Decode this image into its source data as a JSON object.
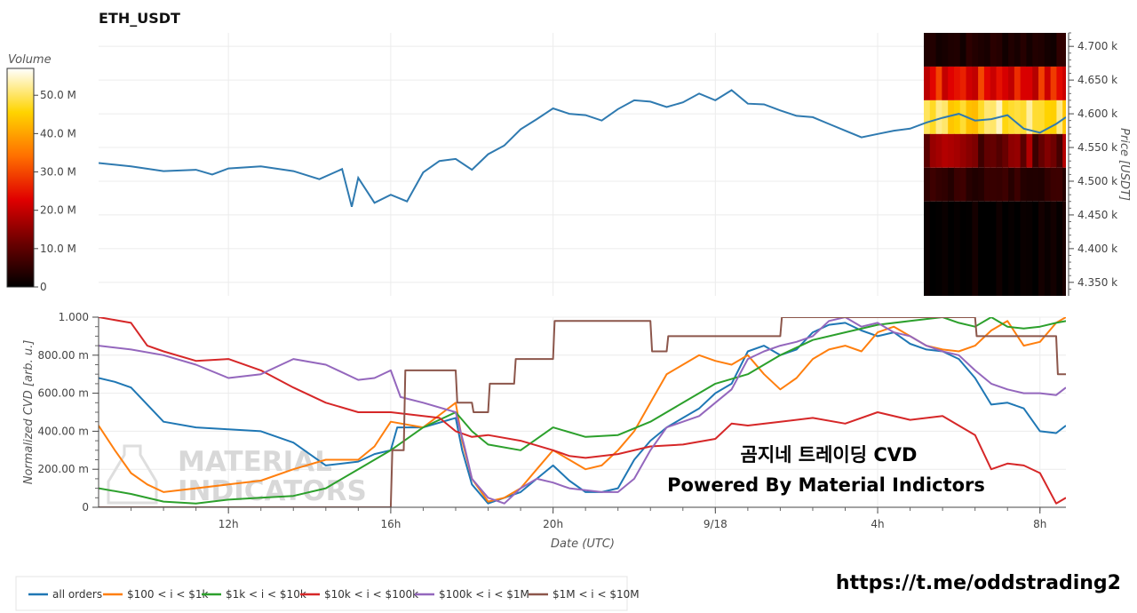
{
  "title": "ETH_USDT",
  "colorbar": {
    "title": "Volume",
    "ticks": [
      "50.0 M",
      "40.0 M",
      "30.0 M",
      "20.0 M",
      "10.0 M",
      "0"
    ]
  },
  "watermark": [
    "MATERIAL",
    "INDICATORS"
  ],
  "annotation": [
    "곰지네 트레이딩 CVD",
    "Powered By Material Indictors"
  ],
  "footer_url": "https://t.me/oddstrading2",
  "chart_data": [
    {
      "type": "line",
      "name": "price",
      "ylabel": "Price [USDT]",
      "ylim": [
        4330,
        4720
      ],
      "y_ticks": [
        "4.700 k",
        "4.650 k",
        "4.600 k",
        "4.550 k",
        "4.500 k",
        "4.450 k",
        "4.400 k",
        "4.350 k"
      ],
      "y_tick_values": [
        4700,
        4650,
        4600,
        4550,
        4500,
        4450,
        4400,
        4350
      ],
      "x_hours": [
        0,
        1,
        2,
        3,
        3.5,
        4,
        5,
        6,
        6.8,
        7.5,
        7.8,
        8,
        8.5,
        9,
        9.5,
        10,
        10.5,
        11,
        11.5,
        12,
        12.5,
        13,
        13.5,
        14,
        14.5,
        15,
        15.5,
        16,
        16.5,
        17,
        17.5,
        18,
        18.5,
        19,
        19.5,
        20,
        20.5,
        21,
        21.5,
        22,
        22.5,
        23,
        23.5,
        24,
        24.5,
        25,
        25.5,
        26,
        26.5,
        27,
        27.5,
        28,
        28.5,
        29,
        29.5,
        29.8
      ],
      "values": [
        4527,
        4522,
        4515,
        4517,
        4510,
        4519,
        4522,
        4515,
        4503,
        4518,
        4462,
        4505,
        4468,
        4480,
        4470,
        4513,
        4530,
        4533,
        4517,
        4540,
        4553,
        4577,
        4592,
        4608,
        4600,
        4598,
        4590,
        4607,
        4620,
        4618,
        4610,
        4617,
        4630,
        4620,
        4635,
        4615,
        4614,
        4605,
        4597,
        4595,
        4585,
        4575,
        4565,
        4570,
        4575,
        4578,
        4587,
        4594,
        4600,
        4590,
        4592,
        4598,
        4578,
        4572,
        4585,
        4595
      ]
    },
    {
      "type": "heatmap",
      "name": "volume profile",
      "rows": [
        {
          "price_range": [
            4670,
            4720
          ],
          "intensity": 0.06
        },
        {
          "price_range": [
            4620,
            4670
          ],
          "intensity": 0.42
        },
        {
          "price_range": [
            4570,
            4620
          ],
          "intensity": 0.85
        },
        {
          "price_range": [
            4520,
            4570
          ],
          "intensity": 0.22
        },
        {
          "price_range": [
            4470,
            4520
          ],
          "intensity": 0.09
        },
        {
          "price_range": [
            4330,
            4470
          ],
          "intensity": 0.02
        }
      ]
    },
    {
      "type": "line",
      "name": "cvd",
      "xlabel": "Date (UTC)",
      "ylabel": "Normalized CVD [arb. u.]",
      "ylim": [
        0,
        1
      ],
      "y_ticks": [
        "1.000",
        "800.00 m",
        "600.00 m",
        "400.00 m",
        "200.00 m",
        "0"
      ],
      "y_tick_values": [
        1,
        0.8,
        0.6,
        0.4,
        0.2,
        0
      ],
      "x_ticks": [
        "12h",
        "16h",
        "20h",
        "9/18",
        "4h",
        "8h"
      ],
      "x_tick_hours": [
        4,
        9,
        14,
        19,
        24,
        29
      ],
      "xlim": [
        0,
        29.8
      ],
      "series": [
        {
          "name": "all orders",
          "color": "#1f77b4",
          "x": [
            0,
            0.5,
            1,
            2,
            3,
            4,
            5,
            6,
            7,
            8,
            8.5,
            9,
            9.2,
            10,
            11,
            11.2,
            11.5,
            12,
            12.5,
            13,
            13.5,
            14,
            14.5,
            15,
            15.5,
            16,
            16.5,
            17,
            17.5,
            18,
            18.5,
            19,
            19.5,
            20,
            20.5,
            21,
            21.5,
            22,
            22.5,
            23,
            23.5,
            24,
            24.5,
            25,
            25.5,
            26,
            26.5,
            27,
            27.5,
            28,
            28.5,
            29,
            29.5,
            29.8
          ],
          "values": [
            0.68,
            0.66,
            0.63,
            0.45,
            0.42,
            0.41,
            0.4,
            0.34,
            0.22,
            0.24,
            0.28,
            0.3,
            0.42,
            0.42,
            0.47,
            0.3,
            0.12,
            0.02,
            0.05,
            0.08,
            0.15,
            0.22,
            0.14,
            0.08,
            0.08,
            0.1,
            0.25,
            0.35,
            0.42,
            0.47,
            0.52,
            0.6,
            0.65,
            0.82,
            0.85,
            0.8,
            0.83,
            0.92,
            0.96,
            0.97,
            0.93,
            0.9,
            0.92,
            0.86,
            0.83,
            0.82,
            0.78,
            0.68,
            0.54,
            0.55,
            0.52,
            0.4,
            0.39,
            0.43
          ]
        },
        {
          "name": "$100 < i < $1k",
          "color": "#ff7f0e",
          "x": [
            0,
            0.5,
            1,
            1.5,
            2,
            3,
            4,
            5,
            6,
            7,
            8,
            8.5,
            9,
            10,
            11,
            11.2,
            11.5,
            12,
            12.5,
            13,
            13.5,
            14,
            14.5,
            15,
            15.5,
            16,
            16.5,
            17,
            17.5,
            18,
            18.5,
            19,
            19.5,
            20,
            20.5,
            21,
            21.5,
            22,
            22.5,
            23,
            23.5,
            24,
            24.5,
            25,
            25.5,
            26,
            26.5,
            27,
            27.5,
            28,
            28.5,
            29,
            29.5,
            29.8
          ],
          "values": [
            0.43,
            0.3,
            0.18,
            0.12,
            0.08,
            0.1,
            0.12,
            0.14,
            0.2,
            0.25,
            0.25,
            0.32,
            0.45,
            0.42,
            0.55,
            0.35,
            0.15,
            0.03,
            0.05,
            0.1,
            0.2,
            0.3,
            0.25,
            0.2,
            0.22,
            0.3,
            0.4,
            0.55,
            0.7,
            0.75,
            0.8,
            0.77,
            0.75,
            0.8,
            0.7,
            0.62,
            0.68,
            0.78,
            0.83,
            0.85,
            0.82,
            0.92,
            0.95,
            0.9,
            0.85,
            0.83,
            0.82,
            0.85,
            0.93,
            0.98,
            0.85,
            0.87,
            0.97,
            1.0
          ]
        },
        {
          "name": "$1k < i < $10k",
          "color": "#2ca02c",
          "x": [
            0,
            1,
            2,
            3,
            4,
            5,
            6,
            7,
            8,
            9,
            10,
            11,
            11.5,
            12,
            13,
            14,
            15,
            16,
            17,
            18,
            19,
            20,
            21,
            22,
            23,
            24,
            25,
            26,
            26.5,
            27,
            27.5,
            28,
            28.5,
            29,
            29.5,
            29.8
          ],
          "values": [
            0.1,
            0.07,
            0.03,
            0.02,
            0.04,
            0.05,
            0.06,
            0.1,
            0.2,
            0.3,
            0.42,
            0.5,
            0.4,
            0.33,
            0.3,
            0.42,
            0.37,
            0.38,
            0.45,
            0.55,
            0.65,
            0.7,
            0.8,
            0.88,
            0.92,
            0.96,
            0.98,
            1.0,
            0.97,
            0.95,
            1.0,
            0.95,
            0.94,
            0.95,
            0.97,
            0.98
          ]
        },
        {
          "name": "$10k < i < $100k",
          "color": "#d62728",
          "x": [
            0,
            1,
            1.5,
            2,
            3,
            4,
            5,
            6,
            7,
            8,
            9,
            10,
            10.5,
            11,
            11.5,
            12,
            13,
            14,
            14.5,
            15,
            16,
            17,
            18,
            19,
            19.5,
            20,
            21,
            22,
            23,
            24,
            25,
            26,
            27,
            27.5,
            28,
            28.5,
            29,
            29.5,
            29.8
          ],
          "values": [
            1.0,
            0.97,
            0.85,
            0.82,
            0.77,
            0.78,
            0.72,
            0.63,
            0.55,
            0.5,
            0.5,
            0.48,
            0.47,
            0.4,
            0.37,
            0.38,
            0.35,
            0.3,
            0.27,
            0.26,
            0.28,
            0.32,
            0.33,
            0.36,
            0.44,
            0.43,
            0.45,
            0.47,
            0.44,
            0.5,
            0.46,
            0.48,
            0.38,
            0.2,
            0.23,
            0.22,
            0.18,
            0.02,
            0.05
          ]
        },
        {
          "name": "$100k < i < $1M",
          "color": "#9467bd",
          "x": [
            0,
            1,
            2,
            3,
            4,
            5,
            5.5,
            6,
            7,
            8,
            8.5,
            9,
            9.3,
            10,
            11,
            11.3,
            11.5,
            12,
            12.5,
            13,
            13.5,
            14,
            14.5,
            15,
            15.5,
            16,
            16.5,
            17,
            17.5,
            18,
            18.5,
            19,
            19.5,
            20,
            20.5,
            21,
            21.5,
            22,
            22.5,
            23,
            23.5,
            24,
            24.5,
            25,
            25.5,
            26,
            26.5,
            27,
            27.5,
            28,
            28.5,
            29,
            29.5,
            29.8
          ],
          "values": [
            0.85,
            0.83,
            0.8,
            0.75,
            0.68,
            0.7,
            0.74,
            0.78,
            0.75,
            0.67,
            0.68,
            0.72,
            0.58,
            0.55,
            0.5,
            0.3,
            0.15,
            0.05,
            0.02,
            0.1,
            0.15,
            0.13,
            0.1,
            0.09,
            0.08,
            0.08,
            0.15,
            0.3,
            0.42,
            0.45,
            0.48,
            0.55,
            0.62,
            0.78,
            0.82,
            0.85,
            0.87,
            0.9,
            0.98,
            1.0,
            0.95,
            0.97,
            0.92,
            0.9,
            0.85,
            0.82,
            0.8,
            0.72,
            0.65,
            0.62,
            0.6,
            0.6,
            0.59,
            0.63
          ]
        },
        {
          "name": "$1M < i < $10M",
          "color": "#8c564b",
          "x": [
            0,
            9,
            9.05,
            9.4,
            9.45,
            11,
            11.05,
            11.5,
            11.55,
            12,
            12.05,
            12.8,
            12.85,
            13.5,
            13.55,
            14,
            14.05,
            14.8,
            14.85,
            15,
            15.05,
            17,
            17.05,
            17.5,
            17.55,
            17.7,
            17.75,
            21,
            21.05,
            27,
            27.05,
            29.5,
            29.55,
            29.8
          ],
          "values": [
            0.0,
            0.0,
            0.3,
            0.3,
            0.72,
            0.72,
            0.55,
            0.55,
            0.5,
            0.5,
            0.65,
            0.65,
            0.78,
            0.78,
            0.78,
            0.78,
            0.98,
            0.98,
            0.98,
            0.98,
            0.98,
            0.98,
            0.82,
            0.82,
            0.9,
            0.9,
            0.9,
            0.9,
            1.0,
            1.0,
            0.9,
            0.9,
            0.7,
            0.7
          ]
        }
      ]
    }
  ]
}
